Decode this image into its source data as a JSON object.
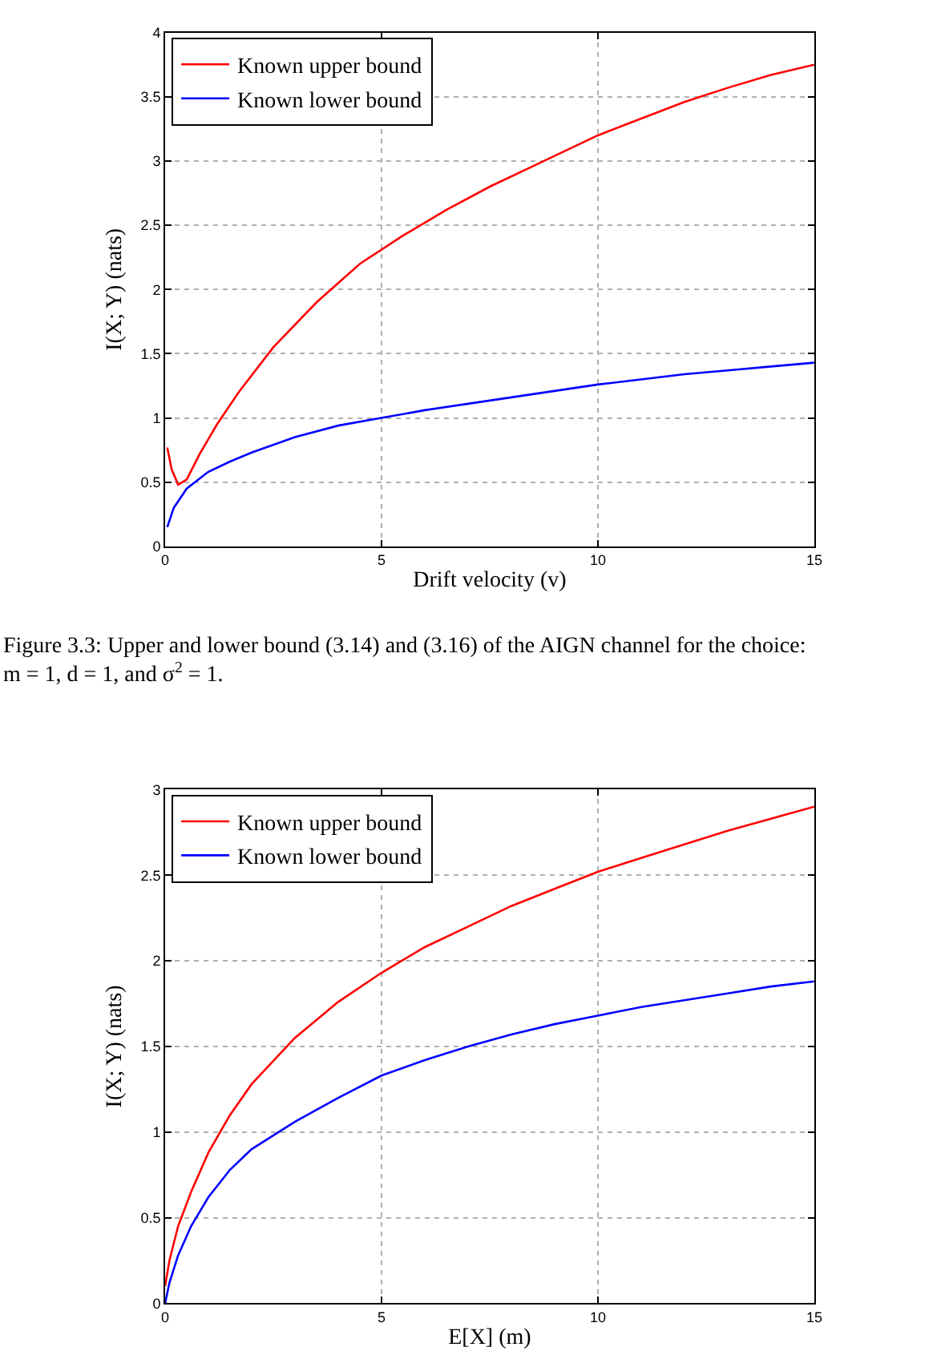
{
  "chart_data": [
    {
      "type": "line",
      "xlabel": "Drift velocity (v)",
      "ylabel": "I(X; Y) (nats)",
      "xlim": [
        0,
        15
      ],
      "ylim": [
        0,
        4
      ],
      "xticks": [
        0,
        5,
        10,
        15
      ],
      "yticks": [
        0,
        0.5,
        1,
        1.5,
        2,
        2.5,
        3,
        3.5,
        4
      ],
      "grid": true,
      "legend": "top left",
      "annotations": [
        "Figure 3.3: Upper and lower bound (3.14) and (3.16) of the AIGN channel for the choice: m = 1, d = 1, and σ$^{2}$ = 1."
      ],
      "series": [
        {
          "name": "Known upper bound",
          "color": "#ff0000",
          "x": [
            0.05,
            0.15,
            0.3,
            0.5,
            0.8,
            1.2,
            1.7,
            2.5,
            3.5,
            4.5,
            5.5,
            6.5,
            7.5,
            8.5,
            10,
            11,
            12,
            13,
            14,
            15
          ],
          "values": [
            0.77,
            0.6,
            0.48,
            0.52,
            0.72,
            0.95,
            1.2,
            1.55,
            1.9,
            2.2,
            2.42,
            2.62,
            2.8,
            2.96,
            3.2,
            3.33,
            3.46,
            3.57,
            3.67,
            3.75
          ]
        },
        {
          "name": "Known lower bound",
          "color": "#0000ff",
          "x": [
            0.05,
            0.2,
            0.5,
            1,
            1.5,
            2,
            3,
            4,
            5,
            6,
            7,
            8,
            9,
            10,
            11,
            12,
            13,
            14,
            15
          ],
          "values": [
            0.15,
            0.3,
            0.45,
            0.58,
            0.66,
            0.73,
            0.85,
            0.94,
            1.0,
            1.06,
            1.11,
            1.16,
            1.21,
            1.26,
            1.3,
            1.34,
            1.37,
            1.4,
            1.43
          ]
        }
      ]
    },
    {
      "type": "line",
      "xlabel": "E[X] (m)",
      "ylabel": "I(X; Y) (nats)",
      "xlim": [
        0,
        15
      ],
      "ylim": [
        0,
        3
      ],
      "xticks": [
        0,
        5,
        10,
        15
      ],
      "yticks": [
        0,
        0.5,
        1,
        1.5,
        2,
        2.5,
        3
      ],
      "grid": true,
      "legend": "top left",
      "series": [
        {
          "name": "Known upper bound",
          "color": "#ff0000",
          "x": [
            0,
            0.1,
            0.3,
            0.6,
            1,
            1.5,
            2,
            3,
            4,
            5,
            6,
            7,
            8,
            9,
            10,
            11,
            12,
            13,
            14,
            15
          ],
          "values": [
            0.1,
            0.25,
            0.45,
            0.65,
            0.88,
            1.1,
            1.28,
            1.55,
            1.76,
            1.93,
            2.08,
            2.2,
            2.32,
            2.42,
            2.52,
            2.6,
            2.68,
            2.76,
            2.83,
            2.9
          ]
        },
        {
          "name": "Known lower bound",
          "color": "#0000ff",
          "x": [
            0,
            0.1,
            0.3,
            0.6,
            1,
            1.5,
            2,
            3,
            4,
            5,
            6,
            7,
            8,
            9,
            10,
            11,
            12,
            13,
            14,
            15
          ],
          "values": [
            0,
            0.12,
            0.28,
            0.45,
            0.62,
            0.78,
            0.9,
            1.06,
            1.2,
            1.33,
            1.42,
            1.5,
            1.57,
            1.63,
            1.68,
            1.73,
            1.77,
            1.81,
            1.85,
            1.88
          ]
        }
      ]
    }
  ]
}
